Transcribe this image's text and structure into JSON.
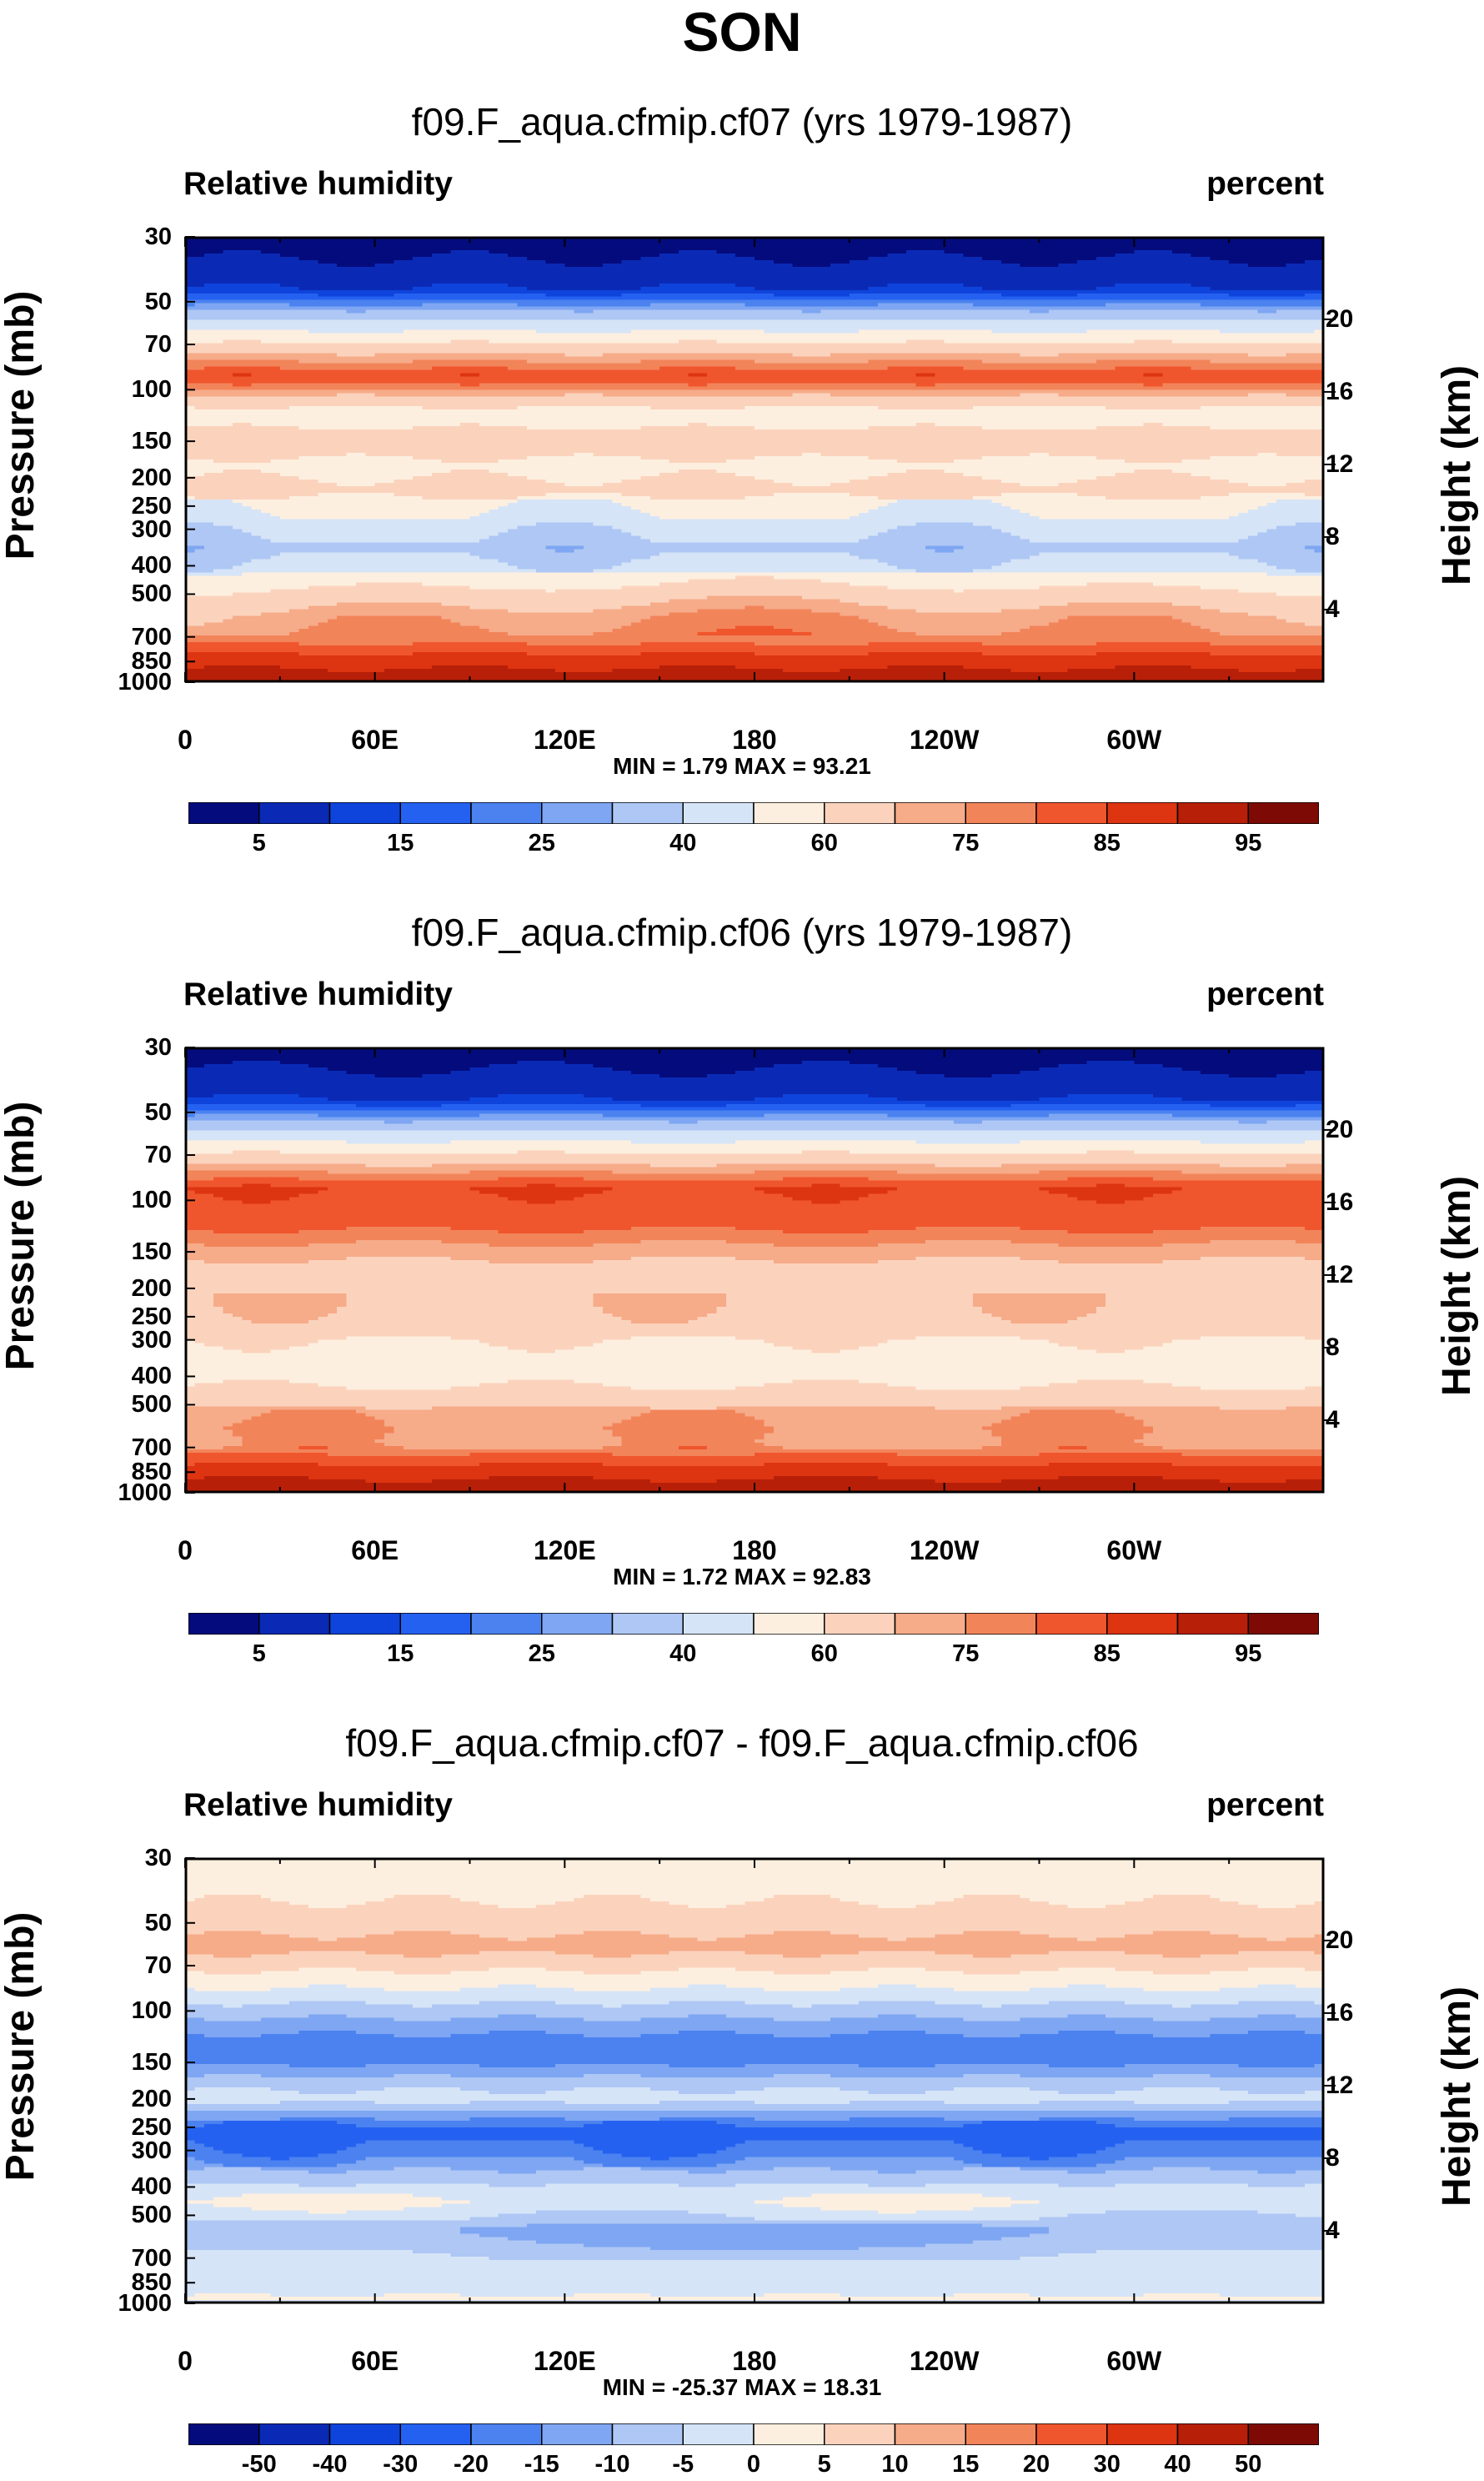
{
  "title": "SON",
  "panels": [
    {
      "title": "f09.F_aqua.cfmip.cf07 (yrs 1979-1987)",
      "left_label": "Relative humidity",
      "right_label": "percent",
      "ylabel": "Pressure (mb)",
      "ylabel_right": "Height (km)",
      "minmax": "MIN =   1.79  MAX =  93.21",
      "colorbar_labels": [
        "5",
        "15",
        "25",
        "40",
        "60",
        "75",
        "85",
        "95"
      ]
    },
    {
      "title": "f09.F_aqua.cfmip.cf06 (yrs 1979-1987)",
      "left_label": "Relative humidity",
      "right_label": "percent",
      "ylabel": "Pressure (mb)",
      "ylabel_right": "Height (km)",
      "minmax": "MIN =   1.72  MAX =  92.83",
      "colorbar_labels": [
        "5",
        "15",
        "25",
        "40",
        "60",
        "75",
        "85",
        "95"
      ]
    },
    {
      "title": "f09.F_aqua.cfmip.cf07 - f09.F_aqua.cfmip.cf06",
      "left_label": "Relative humidity",
      "right_label": "percent",
      "ylabel": "Pressure (mb)",
      "ylabel_right": "Height (km)",
      "minmax": "MIN = -25.37  MAX =  18.31",
      "colorbar_labels": [
        "-50",
        "-40",
        "-30",
        "-20",
        "-15",
        "-10",
        "-5",
        "0",
        "5",
        "10",
        "15",
        "20",
        "30",
        "40",
        "50"
      ]
    }
  ],
  "chart_data": [
    {
      "type": "heatmap",
      "title": "f09.F_aqua.cfmip.cf07 (yrs 1979-1987)",
      "left_label": "Relative humidity",
      "units": "percent",
      "x_ticks": [
        "0",
        "60E",
        "120E",
        "180",
        "120W",
        "60W"
      ],
      "x_values": [
        0,
        60,
        120,
        180,
        240,
        300
      ],
      "x_range": [
        0,
        360
      ],
      "y_label": "Pressure (mb)",
      "y_ticks": [
        30,
        50,
        70,
        100,
        150,
        200,
        250,
        300,
        400,
        500,
        700,
        850,
        1000
      ],
      "y_scale": "log",
      "y_range": [
        30,
        1000
      ],
      "y2_label": "Height (km)",
      "y2_ticks": [
        20,
        16,
        12,
        8,
        4
      ],
      "min": 1.79,
      "max": 93.21,
      "levels": [
        5,
        10,
        15,
        20,
        25,
        30,
        40,
        50,
        60,
        70,
        75,
        80,
        85,
        90,
        95
      ],
      "colors": [
        "#040b7c",
        "#0a2ab6",
        "#0f44dc",
        "#2561f0",
        "#4b82f0",
        "#7ea6f2",
        "#aec7f4",
        "#d6e4f7",
        "#fdefdf",
        "#fbd3bd",
        "#f6ab89",
        "#f2845a",
        "#f0562d",
        "#dd3411",
        "#b71f08",
        "#7d0a04"
      ],
      "profile_pressure": [
        30,
        45,
        60,
        75,
        90,
        120,
        150,
        180,
        220,
        260,
        300,
        350,
        400,
        460,
        520,
        600,
        680,
        740,
        790,
        840,
        880,
        930,
        1000
      ],
      "profile_values": [
        2,
        10,
        45,
        70,
        85,
        55,
        65,
        58,
        62,
        55,
        48,
        40,
        48,
        56,
        65,
        72,
        74,
        80,
        84,
        88,
        89,
        92,
        93
      ]
    },
    {
      "type": "heatmap",
      "title": "f09.F_aqua.cfmip.cf06 (yrs 1979-1987)",
      "left_label": "Relative humidity",
      "units": "percent",
      "x_ticks": [
        "0",
        "60E",
        "120E",
        "180",
        "120W",
        "60W"
      ],
      "x_values": [
        0,
        60,
        120,
        180,
        240,
        300
      ],
      "x_range": [
        0,
        360
      ],
      "y_label": "Pressure (mb)",
      "y_ticks": [
        30,
        50,
        70,
        100,
        150,
        200,
        250,
        300,
        400,
        500,
        700,
        850,
        1000
      ],
      "y_scale": "log",
      "y_range": [
        30,
        1000
      ],
      "y2_label": "Height (km)",
      "y2_ticks": [
        20,
        16,
        12,
        8,
        4
      ],
      "min": 1.72,
      "max": 92.83,
      "levels": [
        5,
        10,
        15,
        20,
        25,
        30,
        40,
        50,
        60,
        70,
        75,
        80,
        85,
        90,
        95
      ],
      "colors": [
        "#040b7c",
        "#0a2ab6",
        "#0f44dc",
        "#2561f0",
        "#4b82f0",
        "#7ea6f2",
        "#aec7f4",
        "#d6e4f7",
        "#fdefdf",
        "#fbd3bd",
        "#f6ab89",
        "#f2845a",
        "#f0562d",
        "#dd3411",
        "#b71f08",
        "#7d0a04"
      ],
      "profile_pressure": [
        30,
        45,
        60,
        75,
        90,
        120,
        150,
        180,
        220,
        260,
        300,
        350,
        400,
        460,
        520,
        600,
        680,
        740,
        790,
        840,
        880,
        930,
        1000
      ],
      "profile_values": [
        2,
        10,
        45,
        70,
        85,
        82,
        72,
        66,
        70,
        66,
        60,
        58,
        58,
        62,
        72,
        76,
        74,
        80,
        84,
        88,
        89,
        92,
        93
      ]
    },
    {
      "type": "heatmap",
      "title": "f09.F_aqua.cfmip.cf07 - f09.F_aqua.cfmip.cf06",
      "left_label": "Relative humidity",
      "units": "percent",
      "x_ticks": [
        "0",
        "60E",
        "120E",
        "180",
        "120W",
        "60W"
      ],
      "x_values": [
        0,
        60,
        120,
        180,
        240,
        300
      ],
      "x_range": [
        0,
        360
      ],
      "y_label": "Pressure (mb)",
      "y_ticks": [
        30,
        50,
        70,
        100,
        150,
        200,
        250,
        300,
        400,
        500,
        700,
        850,
        1000
      ],
      "y_scale": "log",
      "y_range": [
        30,
        1000
      ],
      "y2_label": "Height (km)",
      "y2_ticks": [
        20,
        16,
        12,
        8,
        4
      ],
      "min": -25.37,
      "max": 18.31,
      "levels": [
        -50,
        -40,
        -30,
        -20,
        -15,
        -10,
        -5,
        0,
        5,
        10,
        15,
        20,
        30,
        40,
        50
      ],
      "colors": [
        "#040b7c",
        "#0a2ab6",
        "#0f44dc",
        "#2561f0",
        "#4b82f0",
        "#7ea6f2",
        "#aec7f4",
        "#d6e4f7",
        "#fdefdf",
        "#fbd3bd",
        "#f6ab89",
        "#f2845a",
        "#f0562d",
        "#dd3411",
        "#b71f08",
        "#7d0a04"
      ],
      "profile_pressure": [
        30,
        45,
        60,
        75,
        90,
        110,
        130,
        150,
        180,
        200,
        230,
        260,
        300,
        350,
        400,
        450,
        500,
        560,
        620,
        700,
        800,
        900,
        960,
        1000
      ],
      "profile_values": [
        1,
        6,
        12,
        4,
        -3,
        -12,
        -18,
        -16,
        -6,
        -3,
        -14,
        -22,
        -17,
        -10,
        -4,
        0,
        -4,
        -9,
        -7,
        -3,
        -2,
        -2,
        1,
        -2
      ]
    }
  ]
}
